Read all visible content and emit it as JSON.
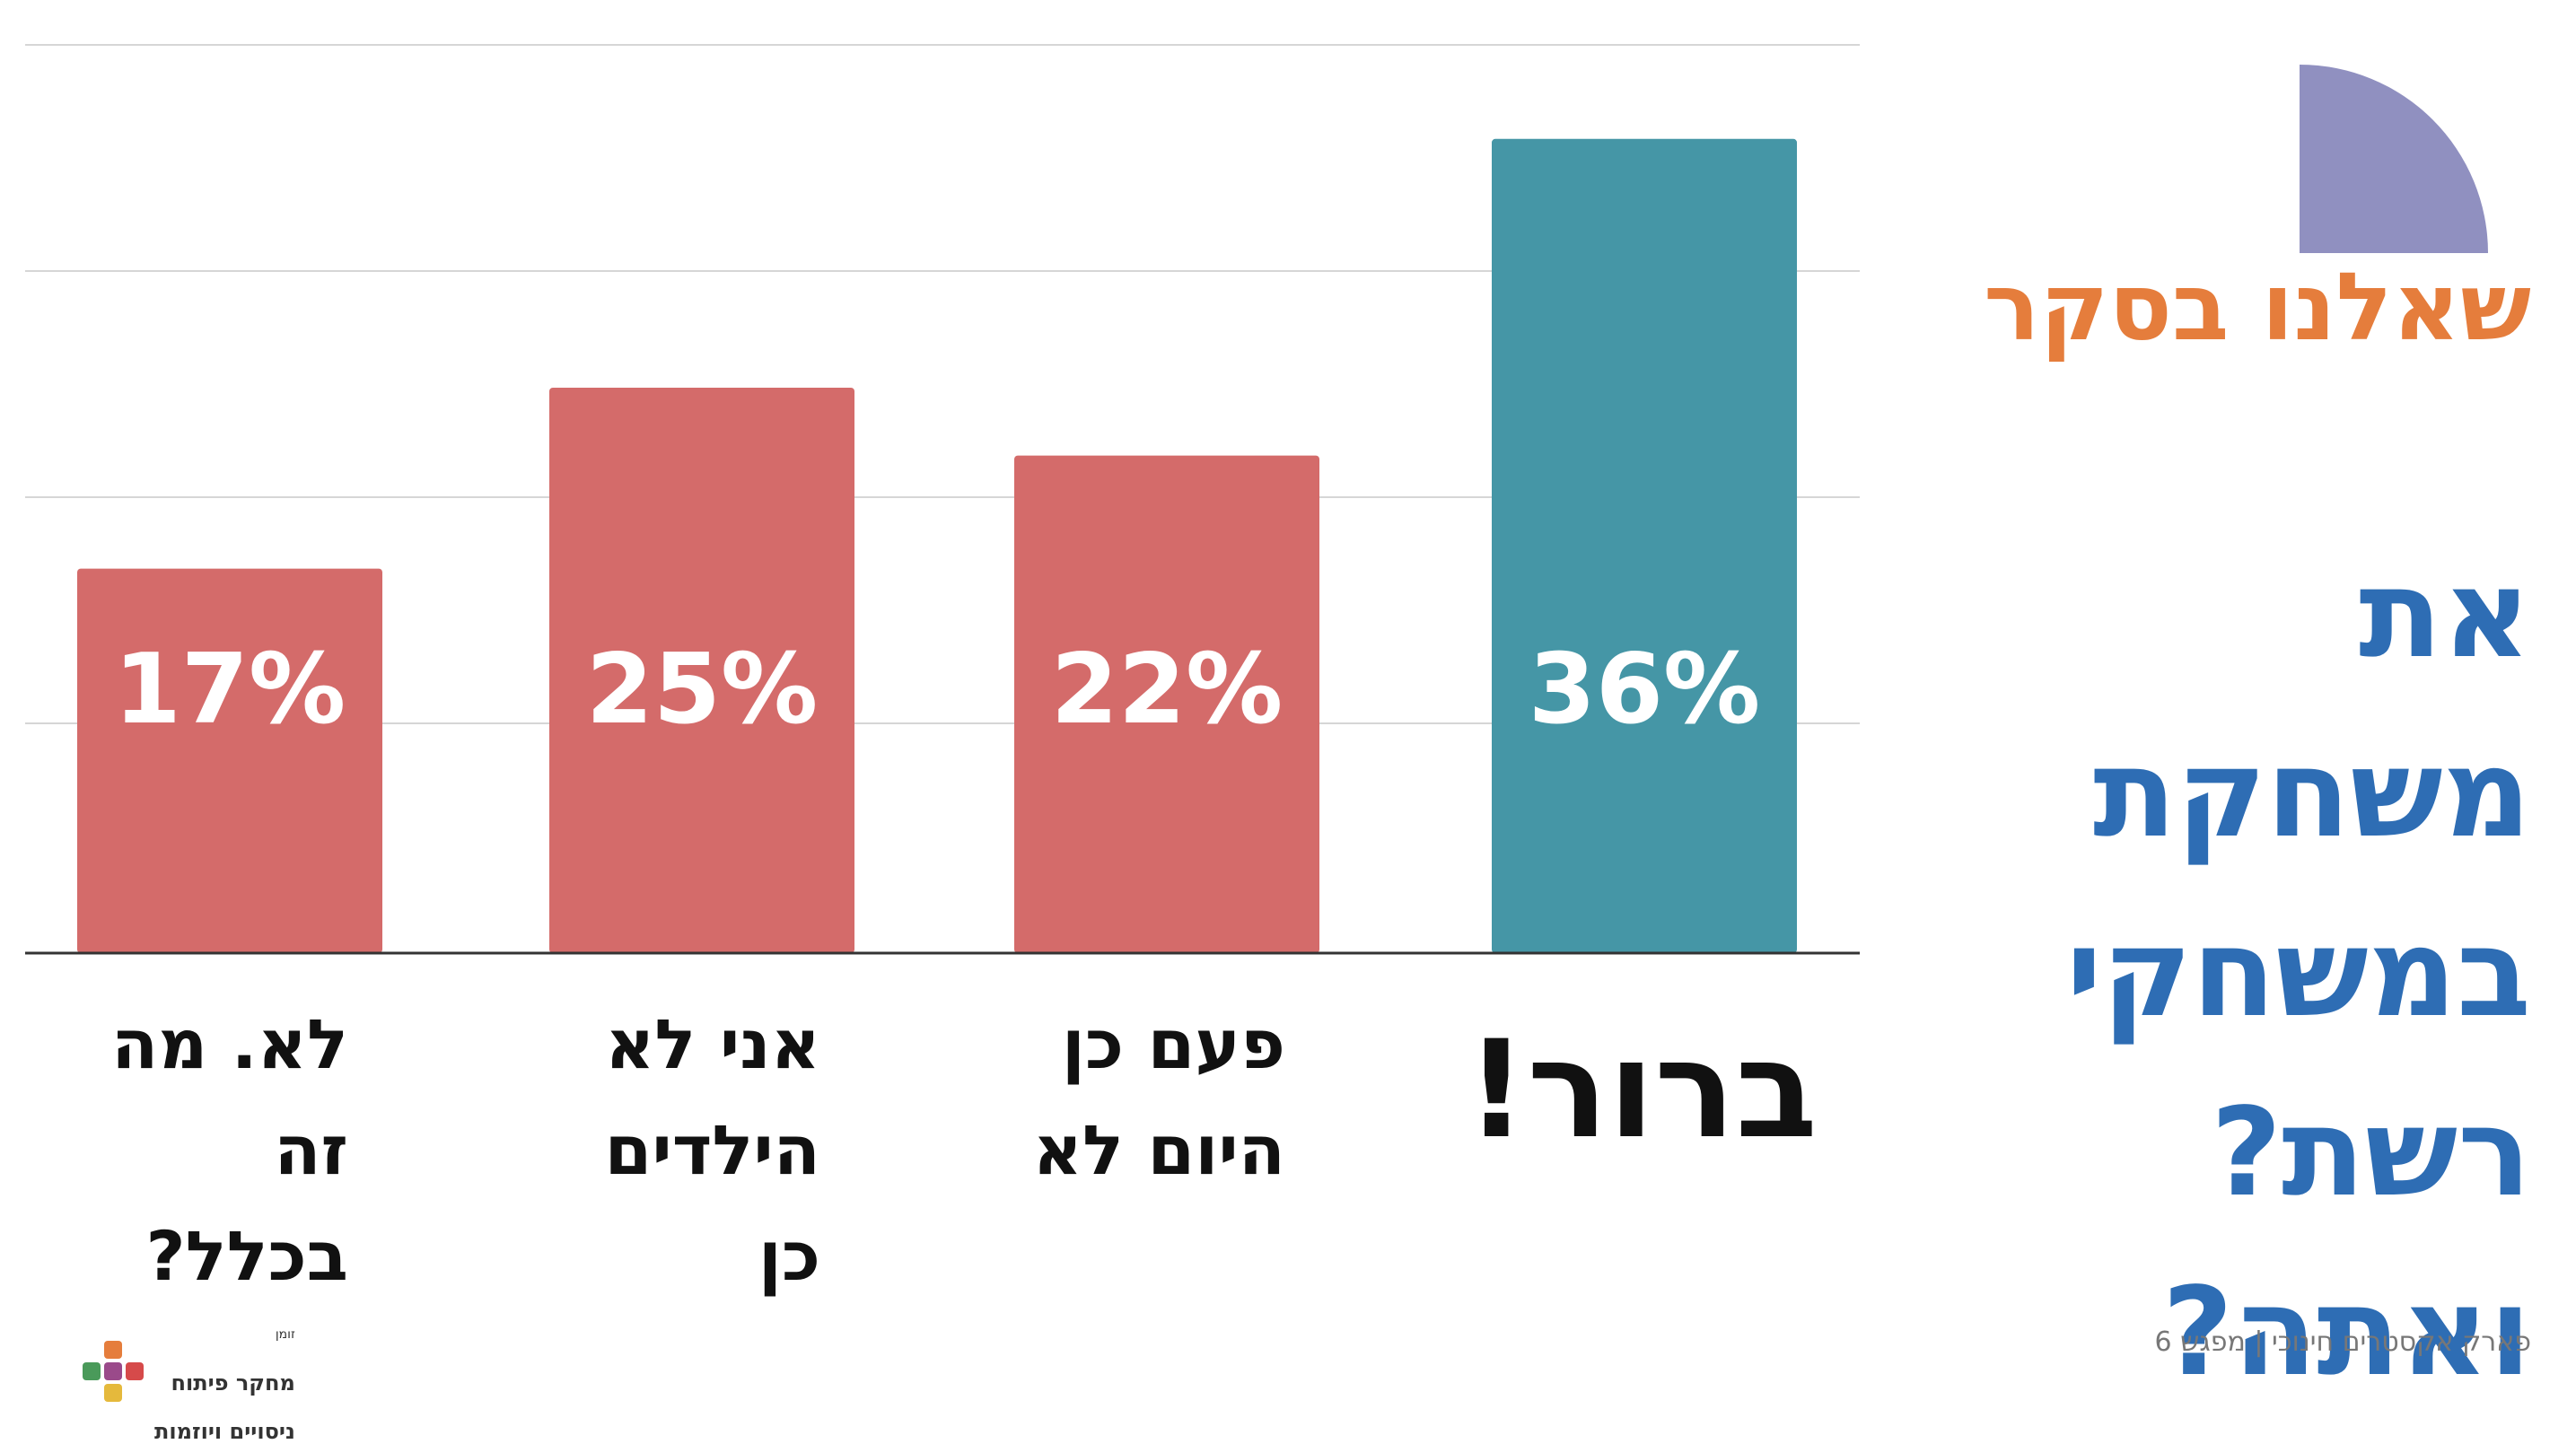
{
  "header": {
    "survey_label": "שאלנו בסקר"
  },
  "question": {
    "lines": [
      "את",
      "משחקת",
      "במשחקי",
      "רשת?",
      "ואתה?"
    ]
  },
  "footer": {
    "text": "פארק אקסטרים חינוכי | מפגש 6"
  },
  "logo": {
    "small_text": "זומן",
    "line1": "מחקר פיתוח",
    "line2": "ניסויים ויוזמות",
    "icon": "colorful-plus-grid-icon"
  },
  "colors": {
    "bar_default": "#d46b6a",
    "bar_highlight": "#4596a6",
    "header_orange": "#e57d3c",
    "question_blue": "#2e6db4",
    "decor_purple": "#9090c0"
  },
  "chart_data": {
    "type": "bar",
    "categories": [
      "לא. מה זה בכלל?",
      "אני לא הילדים כן",
      "פעם כן היום לא",
      "ברור!"
    ],
    "category_lines": [
      [
        "לא. מה",
        "זה",
        "בכלל?"
      ],
      [
        "אני לא",
        "הילדים",
        "כן"
      ],
      [
        "פעם כן",
        "היום לא"
      ],
      [
        "ברור!"
      ]
    ],
    "values": [
      17,
      25,
      22,
      36
    ],
    "value_labels": [
      "17%",
      "25%",
      "22%",
      "36%"
    ],
    "highlight_index": 3,
    "unit": "%",
    "ylim": [
      0,
      40
    ],
    "grid": true,
    "legend": "none",
    "title": "",
    "xlabel": "",
    "ylabel": ""
  }
}
